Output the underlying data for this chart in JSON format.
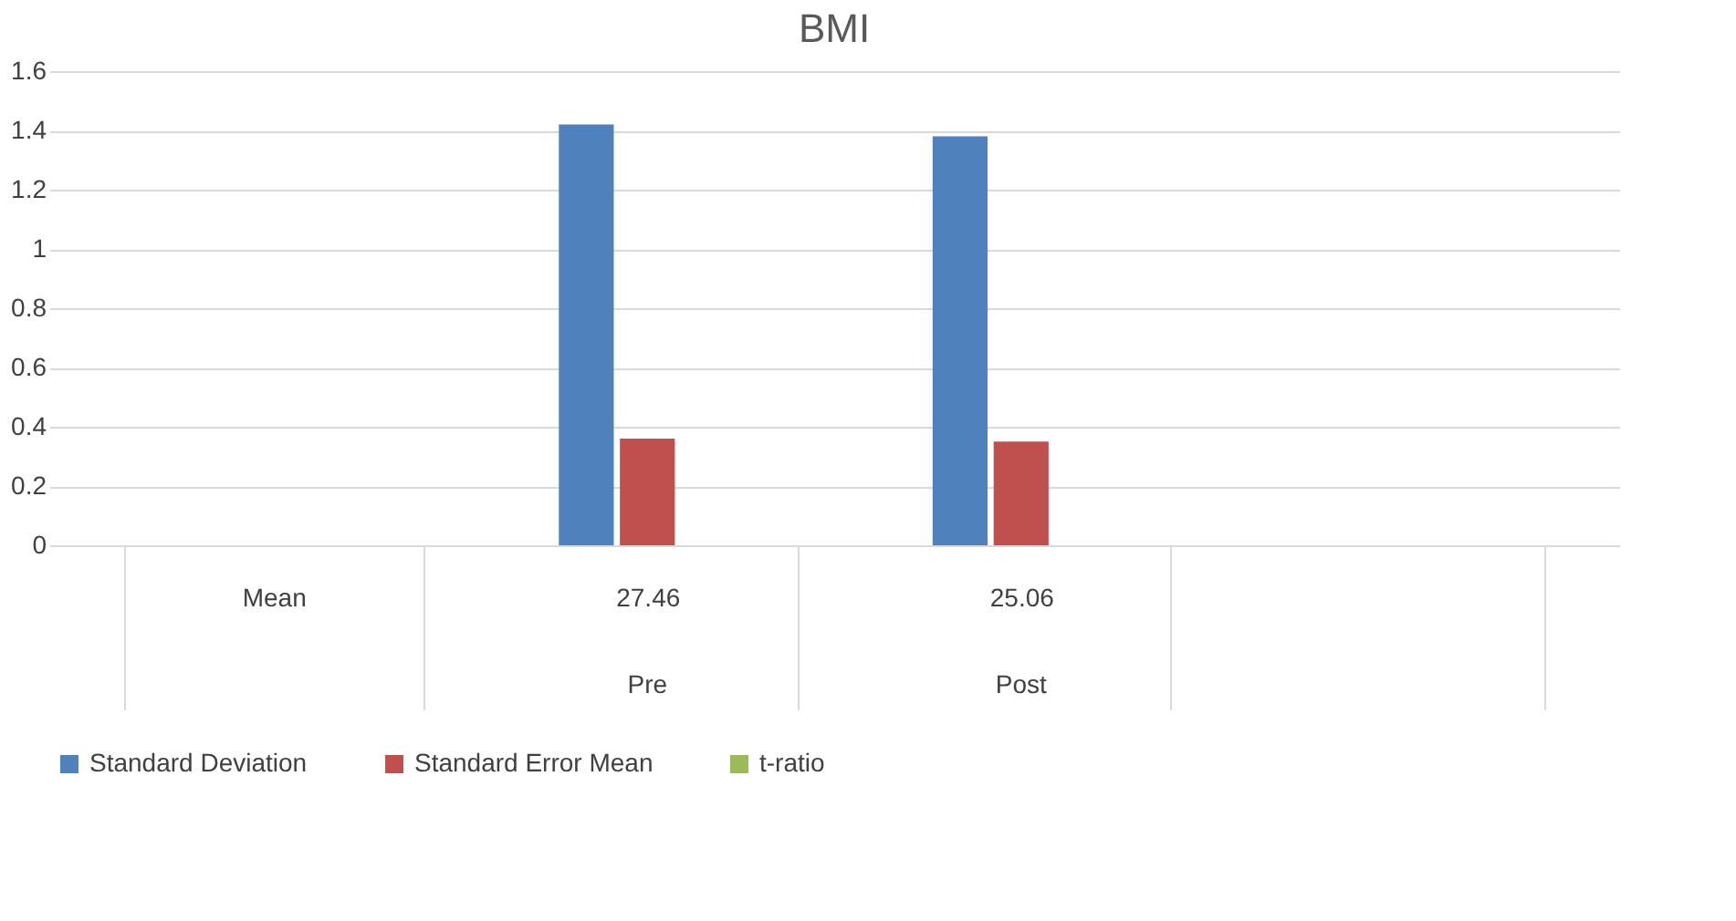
{
  "chart_data": {
    "type": "bar",
    "title": "BMI",
    "categories": [
      "Mean",
      "27.46",
      "25.06",
      null
    ],
    "series": [
      {
        "name": "Standard Deviation",
        "color": "#4f81bd",
        "values": [
          null,
          1.42,
          1.38,
          null
        ]
      },
      {
        "name": "Standard Error Mean",
        "color": "#c0504d",
        "values": [
          null,
          0.36,
          0.35,
          null
        ]
      },
      {
        "name": "t-ratio",
        "color": "#9bbb59",
        "values": [
          null,
          null,
          null,
          null
        ]
      }
    ],
    "annotations": [
      "Pre",
      "Post"
    ],
    "ylim": [
      0,
      1.6
    ],
    "yticks": [
      0,
      0.2,
      0.4,
      0.6,
      0.8,
      1,
      1.2,
      1.4,
      1.6
    ],
    "grid": "y",
    "legend": "bottom"
  }
}
